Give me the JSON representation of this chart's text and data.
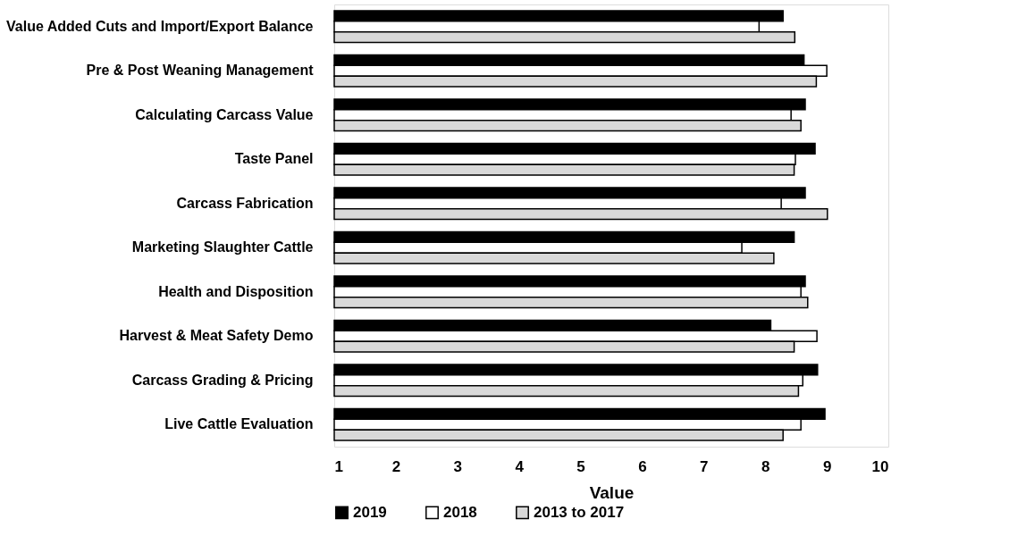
{
  "chart_data": {
    "type": "bar",
    "orientation": "horizontal",
    "xlabel": "Value",
    "categories": [
      "Value Added Cuts and Import/Export Balance",
      "Pre & Post Weaning Management",
      "Calculating Carcass Value",
      "Taste Panel",
      "Carcass Fabrication",
      "Marketing Slaughter Cattle",
      "Health and Disposition",
      "Harvest & Meat Safety Demo",
      "Carcass Grading & Pricing",
      "Live Cattle Evaluation"
    ],
    "series": [
      {
        "name": "2019",
        "color": "#000000",
        "values": [
          8.29,
          8.63,
          8.65,
          8.81,
          8.65,
          8.47,
          8.65,
          8.09,
          8.85,
          8.97
        ]
      },
      {
        "name": "2018",
        "color": "#ffffff",
        "values": [
          7.9,
          9.0,
          8.42,
          8.49,
          8.26,
          7.62,
          8.58,
          8.84,
          8.61,
          8.58
        ]
      },
      {
        "name": "2013 to 2017",
        "color": "#d9d9d9",
        "values": [
          8.48,
          8.83,
          8.58,
          8.47,
          9.01,
          8.14,
          8.69,
          8.47,
          8.54,
          8.29
        ]
      }
    ],
    "xlim": [
      1,
      10
    ],
    "xticks": [
      1,
      2,
      3,
      4,
      5,
      6,
      7,
      8,
      9,
      10
    ],
    "grid": false,
    "legend": "bottom"
  }
}
